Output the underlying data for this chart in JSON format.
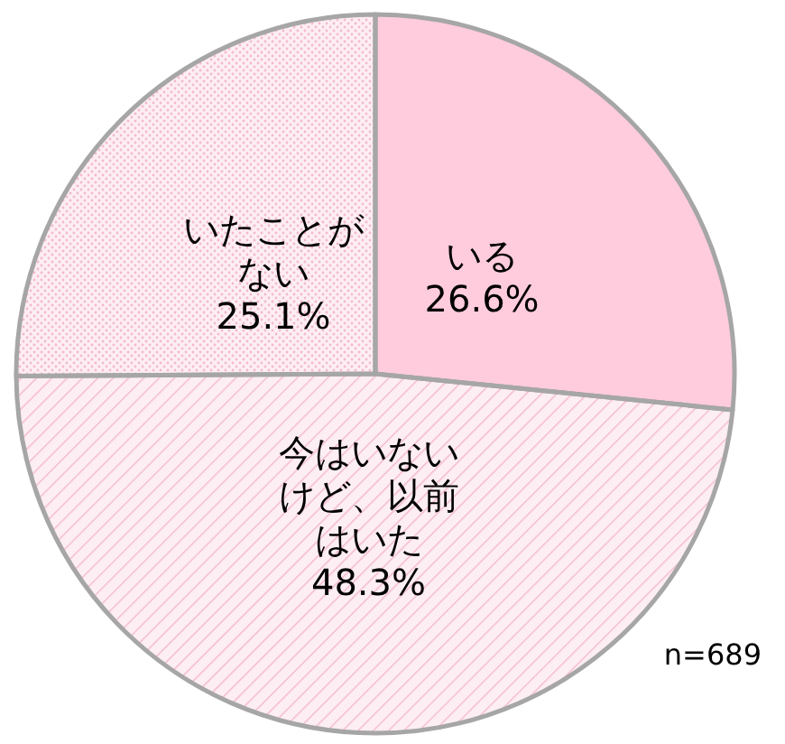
{
  "chart_data": {
    "type": "pie",
    "categories": [
      "いる",
      "今はいないけど、以前はいた",
      "いたことがない"
    ],
    "values": [
      26.6,
      48.3,
      25.1
    ],
    "value_labels": [
      "26.6%",
      "48.3%",
      "25.1%"
    ],
    "colors": [
      "#ffccdd",
      "#fdeef3",
      "#fdeef3"
    ],
    "annotations": [
      "n=689"
    ]
  }
}
